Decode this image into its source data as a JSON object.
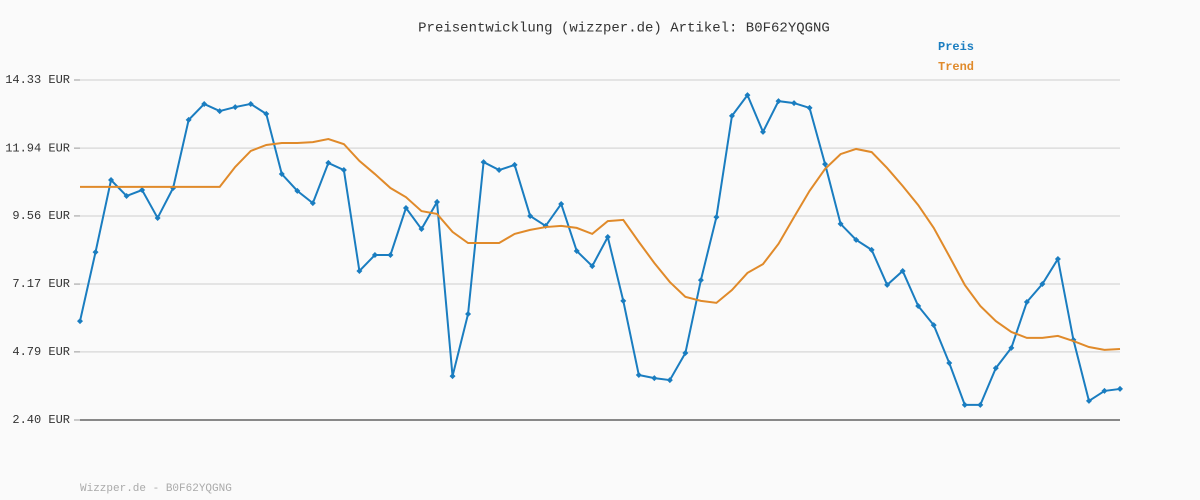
{
  "chart_data": {
    "type": "line",
    "title": "Preisentwicklung (wizzper.de) Artikel: B0F62YQGNG",
    "footer": "Wizzper.de - B0F62YQGNG",
    "categories": [
      null,
      null,
      null,
      null,
      null,
      null,
      null,
      null,
      null,
      null,
      null,
      null,
      null,
      null,
      null,
      null,
      null,
      null,
      null,
      null,
      null,
      null,
      null,
      null,
      null,
      null,
      null,
      null,
      null,
      null,
      null,
      null,
      null,
      null,
      null,
      null,
      null,
      null,
      null,
      null,
      null,
      null,
      null,
      null,
      null,
      null,
      null,
      null,
      null,
      null,
      null,
      null,
      null,
      null,
      null,
      null,
      null,
      null,
      null,
      null,
      null,
      null,
      null,
      null,
      null,
      null,
      null,
      null
    ],
    "series": [
      {
        "name": "Preis",
        "color": "#1a7dc0",
        "markers": true,
        "values": [
          5.87,
          8.29,
          10.82,
          10.26,
          10.47,
          9.49,
          10.54,
          12.93,
          13.49,
          13.24,
          13.38,
          13.49,
          13.14,
          11.03,
          10.44,
          10.01,
          11.42,
          11.17,
          7.63,
          8.19,
          8.19,
          9.84,
          9.1,
          10.05,
          3.94,
          6.12,
          11.45,
          11.17,
          11.35,
          9.56,
          9.21,
          9.98,
          8.33,
          7.8,
          8.82,
          6.58,
          3.98,
          3.87,
          3.8,
          4.75,
          7.31,
          9.52,
          13.07,
          13.8,
          12.51,
          13.59,
          13.52,
          13.35,
          11.38,
          9.28,
          8.72,
          8.37,
          7.14,
          7.63,
          6.4,
          5.73,
          4.4,
          2.93,
          2.93,
          4.22,
          4.93,
          6.54,
          7.17,
          8.05,
          5.21,
          3.07,
          3.42,
          3.49
        ]
      },
      {
        "name": "Trend",
        "color": "#e08a2a",
        "markers": false,
        "values": [
          10.58,
          10.58,
          10.58,
          10.58,
          10.58,
          10.58,
          10.58,
          10.58,
          10.58,
          10.58,
          11.28,
          11.84,
          12.05,
          12.12,
          12.12,
          12.15,
          12.26,
          12.08,
          11.49,
          11.03,
          10.54,
          10.22,
          9.73,
          9.63,
          9.0,
          8.61,
          8.61,
          8.61,
          8.93,
          9.07,
          9.17,
          9.21,
          9.14,
          8.93,
          9.38,
          9.42,
          8.65,
          7.91,
          7.24,
          6.72,
          6.58,
          6.51,
          6.96,
          7.56,
          7.87,
          8.58,
          9.52,
          10.44,
          11.21,
          11.73,
          11.91,
          11.8,
          11.24,
          10.61,
          9.94,
          9.14,
          8.15,
          7.14,
          6.4,
          5.87,
          5.49,
          5.28,
          5.28,
          5.35,
          5.17,
          4.96,
          4.86,
          4.89
        ]
      }
    ],
    "ylim": [
      2.4,
      14.33
    ],
    "yticks": [
      {
        "value": 2.4,
        "label": "2.40 EUR"
      },
      {
        "value": 4.79,
        "label": "4.79 EUR"
      },
      {
        "value": 7.17,
        "label": "7.17 EUR"
      },
      {
        "value": 9.56,
        "label": "9.56 EUR"
      },
      {
        "value": 11.94,
        "label": "11.94 EUR"
      },
      {
        "value": 14.33,
        "label": "14.33 EUR"
      }
    ],
    "grid": true,
    "legend": "top-right"
  }
}
